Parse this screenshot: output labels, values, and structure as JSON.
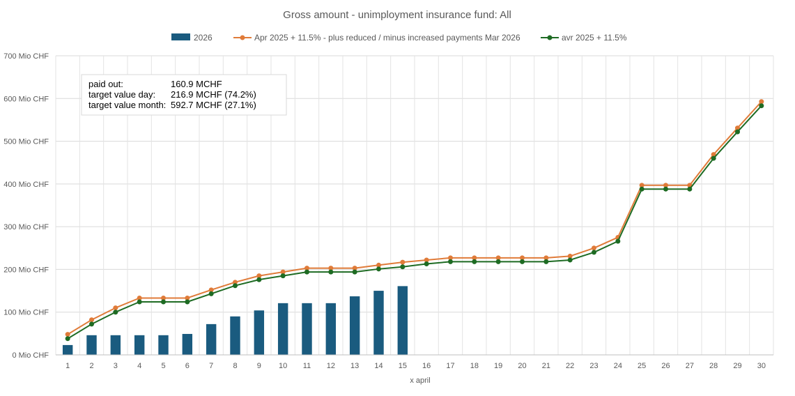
{
  "chart_data": {
    "type": "bar+line",
    "title": "Gross amount - unimployment insurance fund: All",
    "xlabel": "x april",
    "ylabel": "",
    "y_unit_suffix": " Mio CHF",
    "ylim": [
      0,
      700
    ],
    "yticks": [
      0,
      100,
      200,
      300,
      400,
      500,
      600,
      700
    ],
    "categories": [
      "1",
      "2",
      "3",
      "4",
      "5",
      "6",
      "7",
      "8",
      "9",
      "10",
      "11",
      "12",
      "13",
      "14",
      "15",
      "16",
      "17",
      "18",
      "19",
      "20",
      "21",
      "22",
      "23",
      "24",
      "25",
      "26",
      "27",
      "28",
      "29",
      "30"
    ],
    "grid": true,
    "legend_position": "top",
    "series": [
      {
        "name": "2026",
        "type": "bar",
        "color": "#1a5b7f",
        "values": [
          23,
          46,
          46,
          46,
          46,
          49,
          72,
          90,
          104,
          121,
          121,
          121,
          137,
          150,
          160.9,
          null,
          null,
          null,
          null,
          null,
          null,
          null,
          null,
          null,
          null,
          null,
          null,
          null,
          null,
          null
        ]
      },
      {
        "name": "Apr 2025 + 11.5% -  plus reduced / minus increased payments Mar 2026",
        "type": "line",
        "color": "#e07b39",
        "values": [
          48,
          82,
          110,
          133,
          133,
          133,
          152,
          170,
          185,
          194,
          203,
          203,
          203,
          210,
          216.9,
          222,
          227,
          227,
          227,
          227,
          227,
          231,
          250,
          275,
          397,
          397,
          397,
          469,
          531,
          592.7
        ]
      },
      {
        "name": "avr 2025 + 11.5%",
        "type": "line",
        "color": "#1e6b23",
        "values": [
          38,
          72,
          100,
          124,
          124,
          124,
          143,
          162,
          176,
          185,
          194,
          194,
          194,
          201,
          206,
          213,
          218,
          218,
          218,
          218,
          218,
          222,
          240,
          266,
          388,
          388,
          388,
          460,
          522,
          583
        ]
      }
    ],
    "annotation": {
      "lines": [
        {
          "label": "paid out:",
          "value": "160.9 MCHF"
        },
        {
          "label": "target value day:",
          "value": "216.9 MCHF (74.2%)"
        },
        {
          "label": "target value month:",
          "value": "592.7 MCHF (27.1%)"
        }
      ]
    }
  }
}
